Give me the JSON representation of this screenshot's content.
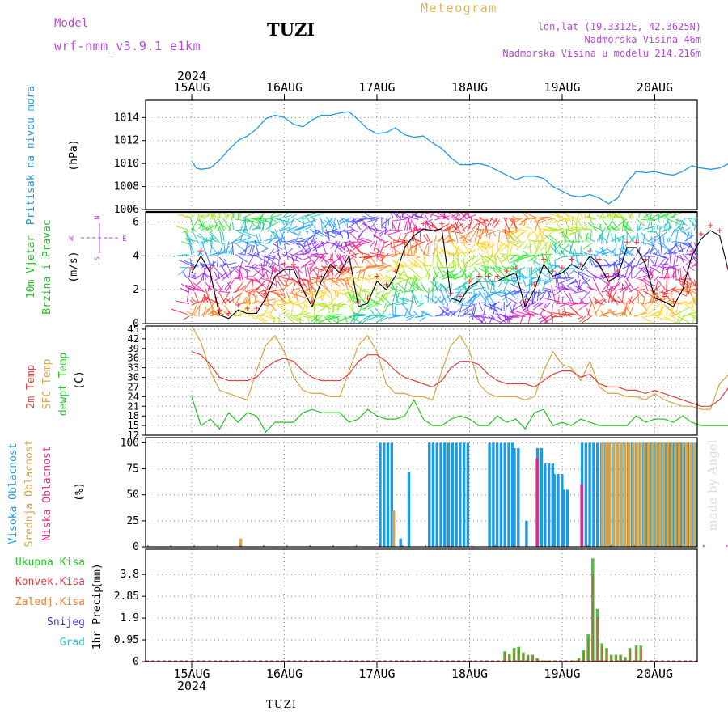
{
  "header": {
    "model_label": "Model",
    "model_name": "wrf-nmm_v3.9.1  e1km",
    "station": "TUZI",
    "meteogram": "Meteogram",
    "lonlat": "lon,lat (19.3312E, 42.3625N)",
    "elevation": "Nadmorska Visina 46m",
    "model_elevation": "Nadmorska Visina u modelu 214.216m",
    "year": "2024",
    "footer_station": "TUZI",
    "watermark": "made by Angel"
  },
  "colors": {
    "pressure": "#1e9be0",
    "temp2m": "#e34040",
    "sfc": "#d9a441",
    "dewpt": "#22c422",
    "cloud_high": "#1e9be0",
    "cloud_mid": "#d9a441",
    "cloud_low": "#e3278f",
    "precip_total": "#4fc23a",
    "precip_conv": "#e34040",
    "precip_frozen": "#f08030",
    "precip_snow": "#3a3ad0",
    "precip_hail": "#2ec4c4",
    "purple_text": "#b44bd6",
    "gold_text": "#e0b450"
  },
  "chart_data": [
    {
      "type": "line",
      "x_ticks": [
        "15AUG",
        "16AUG",
        "17AUG",
        "18AUG",
        "19AUG",
        "20AUG"
      ],
      "ylabel": "Pritisak na nivou mora",
      "unit": "(hPa)",
      "ylim": [
        1006,
        1015.5
      ],
      "yticks": [
        "1014",
        "1012",
        "1010",
        "1008",
        "1006"
      ],
      "series": [
        {
          "name": "Pritisak na nivou mora",
          "x": [
            0,
            0.05,
            0.1,
            0.2,
            0.3,
            0.4,
            0.5,
            0.6,
            0.7,
            0.8,
            0.9,
            1.0,
            1.1,
            1.2,
            1.3,
            1.4,
            1.5,
            1.6,
            1.7,
            1.8,
            1.9,
            2.0,
            2.1,
            2.2,
            2.3,
            2.4,
            2.5,
            2.6,
            2.7,
            2.8,
            2.9,
            3.0,
            3.1,
            3.2,
            3.3,
            3.4,
            3.5,
            3.6,
            3.7,
            3.8,
            3.9,
            4.0,
            4.1,
            4.2,
            4.3,
            4.4,
            4.5,
            4.6,
            4.7,
            4.8,
            4.9,
            5.0,
            5.1,
            5.2,
            5.3,
            5.4,
            5.5,
            5.6,
            5.7,
            5.8,
            5.9,
            6.0
          ],
          "values": [
            1010.2,
            1009.6,
            1009.5,
            1009.6,
            1010.3,
            1011.2,
            1012.0,
            1012.4,
            1013.0,
            1013.9,
            1014.2,
            1014.0,
            1013.4,
            1013.2,
            1013.8,
            1014.2,
            1014.2,
            1014.4,
            1014.5,
            1013.8,
            1013.0,
            1012.6,
            1012.7,
            1013.1,
            1012.5,
            1012.3,
            1012.4,
            1011.8,
            1011.3,
            1010.5,
            1009.9,
            1009.9,
            1010.0,
            1009.8,
            1009.4,
            1009.0,
            1008.6,
            1008.9,
            1008.9,
            1008.7,
            1008.0,
            1007.6,
            1007.2,
            1007.1,
            1007.3,
            1007.0,
            1006.5,
            1007.0,
            1008.4,
            1009.3,
            1009.2,
            1009.3,
            1009.1,
            1009.0,
            1009.3,
            1009.8,
            1009.6,
            1009.5,
            1009.6,
            1010.0,
            1010.2,
            1010.2
          ]
        }
      ]
    },
    {
      "type": "line",
      "ylabel_1": "10m Vjetar",
      "ylabel_2": "Brzina i Pravac",
      "unit": "(m/s)",
      "ylim": [
        0,
        6.6
      ],
      "yticks": [
        "6",
        "4",
        "2",
        "0"
      ],
      "compass": {
        "n": "N",
        "s": "S",
        "e": "E",
        "w": "W"
      },
      "series": [
        {
          "name": "Brzina",
          "x": [
            0,
            0.1,
            0.2,
            0.3,
            0.4,
            0.5,
            0.6,
            0.7,
            0.8,
            0.9,
            1.0,
            1.1,
            1.2,
            1.3,
            1.4,
            1.5,
            1.6,
            1.7,
            1.8,
            1.9,
            2.0,
            2.1,
            2.2,
            2.3,
            2.4,
            2.5,
            2.6,
            2.7,
            2.8,
            2.9,
            3.0,
            3.1,
            3.2,
            3.3,
            3.4,
            3.5,
            3.6,
            3.7,
            3.8,
            3.9,
            4.0,
            4.1,
            4.2,
            4.3,
            4.4,
            4.5,
            4.6,
            4.7,
            4.8,
            4.9,
            5.0,
            5.1,
            5.2,
            5.3,
            5.4,
            5.5,
            5.6,
            5.7,
            5.8,
            5.9,
            6.0
          ],
          "values": [
            3.0,
            4.0,
            3.0,
            0.5,
            0.3,
            0.8,
            0.6,
            0.6,
            1.5,
            2.8,
            3.2,
            3.2,
            2.0,
            1.0,
            2.5,
            3.5,
            3.0,
            4.0,
            1.0,
            1.2,
            2.5,
            2.0,
            2.8,
            4.5,
            5.2,
            5.6,
            5.5,
            5.6,
            1.5,
            1.3,
            2.2,
            2.5,
            2.5,
            2.5,
            2.8,
            3.0,
            1.0,
            2.0,
            3.5,
            2.8,
            3.0,
            3.5,
            3.2,
            4.0,
            3.5,
            2.5,
            2.8,
            4.5,
            4.5,
            3.5,
            1.5,
            1.3,
            1.0,
            2.0,
            4.0,
            5.0,
            5.5,
            5.2,
            3.0,
            2.0,
            2.2
          ]
        }
      ]
    },
    {
      "type": "line",
      "ylabel_1": "2m Temp",
      "ylabel_2": "SFC Temp",
      "ylabel_3": "dewpt Temp",
      "unit": "(C)",
      "ylim": [
        12,
        46
      ],
      "yticks": [
        "45",
        "42",
        "39",
        "36",
        "33",
        "30",
        "27",
        "24",
        "21",
        "18",
        "15",
        "12"
      ],
      "x": [
        0,
        0.1,
        0.2,
        0.3,
        0.4,
        0.5,
        0.6,
        0.7,
        0.8,
        0.9,
        1.0,
        1.1,
        1.2,
        1.3,
        1.4,
        1.5,
        1.6,
        1.7,
        1.8,
        1.9,
        2.0,
        2.1,
        2.2,
        2.3,
        2.4,
        2.5,
        2.6,
        2.7,
        2.8,
        2.9,
        3.0,
        3.1,
        3.2,
        3.3,
        3.4,
        3.5,
        3.6,
        3.7,
        3.8,
        3.9,
        4.0,
        4.1,
        4.2,
        4.3,
        4.4,
        4.5,
        4.6,
        4.7,
        4.8,
        4.9,
        5.0,
        5.1,
        5.2,
        5.3,
        5.4,
        5.5,
        5.6,
        5.7,
        5.8,
        5.9,
        6.0
      ],
      "series": [
        {
          "name": "2m Temp",
          "values": [
            38,
            37,
            34,
            30,
            29,
            29,
            29,
            30,
            33,
            35,
            36,
            35,
            32,
            30,
            29,
            29,
            29,
            31,
            35,
            37,
            37,
            35,
            32,
            30,
            29,
            28,
            27,
            29,
            33,
            35,
            35,
            34,
            31,
            29,
            28,
            28,
            28,
            27,
            29,
            31,
            32,
            32,
            30,
            31,
            28,
            27,
            27,
            26,
            26,
            25,
            26,
            25,
            24,
            23,
            22,
            21,
            21,
            23,
            27,
            29,
            30
          ]
        }
      ],
      "sfc": [
        46,
        41,
        32,
        26,
        25,
        24,
        23,
        32,
        40,
        43,
        38,
        30,
        26,
        25,
        25,
        24,
        24,
        32,
        40,
        43,
        38,
        28,
        25,
        25,
        24,
        24,
        23,
        32,
        40,
        43,
        38,
        28,
        25,
        24,
        24,
        24,
        23,
        24,
        32,
        38,
        34,
        33,
        29,
        35,
        27,
        25,
        25,
        24,
        24,
        23,
        25,
        23,
        22,
        21,
        21,
        20,
        20,
        28,
        31,
        36,
        34
      ],
      "dewpt": [
        24,
        15,
        17,
        14,
        19,
        16,
        19,
        18,
        13,
        16,
        16,
        16,
        19,
        20,
        19,
        19,
        19,
        16,
        17,
        20,
        18,
        17,
        17,
        18,
        23,
        17,
        15,
        15,
        17,
        18,
        17,
        15,
        15,
        18,
        16,
        17,
        14,
        19,
        20,
        15,
        16,
        15,
        17,
        16,
        15,
        15,
        15,
        15,
        18,
        16,
        17,
        17,
        16,
        18,
        16,
        15,
        15,
        15,
        15,
        17,
        18
      ]
    },
    {
      "type": "bar",
      "ylabel_1": "Visoka Oblacnost",
      "ylabel_2": "Srednja Oblacnost",
      "ylabel_3": "Niska Oblacnost",
      "unit": "(%)",
      "ylim": [
        0,
        105
      ],
      "yticks": [
        "100",
        "75",
        "50",
        "25",
        "0"
      ],
      "high_segments": [
        {
          "from": 2.02,
          "to": 2.18,
          "value": 100
        },
        {
          "from": 2.24,
          "to": 2.26,
          "value": 8
        },
        {
          "from": 2.33,
          "to": 2.35,
          "value": 72
        },
        {
          "from": 2.55,
          "to": 2.97,
          "value": 100
        },
        {
          "from": 3.2,
          "to": 3.47,
          "value": 100
        },
        {
          "from": 3.47,
          "to": 3.52,
          "value": 95
        },
        {
          "from": 3.6,
          "to": 3.62,
          "value": 25
        },
        {
          "from": 3.72,
          "to": 3.8,
          "value": 95
        },
        {
          "from": 3.8,
          "to": 3.9,
          "value": 80
        },
        {
          "from": 3.9,
          "to": 4.0,
          "value": 70
        },
        {
          "from": 4.0,
          "to": 4.05,
          "value": 55
        },
        {
          "from": 4.2,
          "to": 4.9,
          "value": 100
        },
        {
          "from": 4.9,
          "to": 5.3,
          "value": 100
        },
        {
          "from": 5.3,
          "to": 6.0,
          "value": 100
        }
      ],
      "mid_segments": [
        {
          "from": 0.5,
          "to": 0.52,
          "value": 8
        },
        {
          "from": 2.15,
          "to": 2.17,
          "value": 35
        },
        {
          "from": 4.4,
          "to": 6.0,
          "value": 100
        }
      ],
      "low_segments": [
        {
          "from": 3.72,
          "to": 3.74,
          "value": 85
        },
        {
          "from": 4.2,
          "to": 4.22,
          "value": 60
        }
      ]
    },
    {
      "type": "bar",
      "ylabel": "1hr Precip",
      "unit": "(mm)",
      "ylim": [
        0,
        4.9
      ],
      "yticks": [
        "3.8",
        "2.85",
        "1.9",
        "0.95",
        "0"
      ],
      "legend": [
        "Ukupna Kisa",
        "Konvek.Kisa",
        "Zaledj.Kisa",
        "Snijeg",
        "Grad"
      ],
      "x": [
        3.38,
        3.43,
        3.48,
        3.53,
        3.58,
        3.63,
        3.68,
        3.73,
        3.78,
        3.83,
        3.98,
        4.03,
        4.13,
        4.18,
        4.23,
        4.28,
        4.33,
        4.38,
        4.43,
        4.48,
        4.53,
        4.58,
        4.63,
        4.68,
        4.73,
        4.8,
        4.85,
        5.98
      ],
      "values": [
        0.45,
        0.35,
        0.6,
        0.65,
        0.4,
        0.3,
        0.3,
        0.15,
        0.05,
        0.05,
        0.05,
        0.05,
        0.05,
        0.15,
        0.5,
        1.2,
        4.5,
        2.3,
        0.8,
        0.6,
        0.3,
        0.3,
        0.3,
        0.2,
        0.6,
        0.7,
        0.7,
        0.2
      ]
    }
  ]
}
